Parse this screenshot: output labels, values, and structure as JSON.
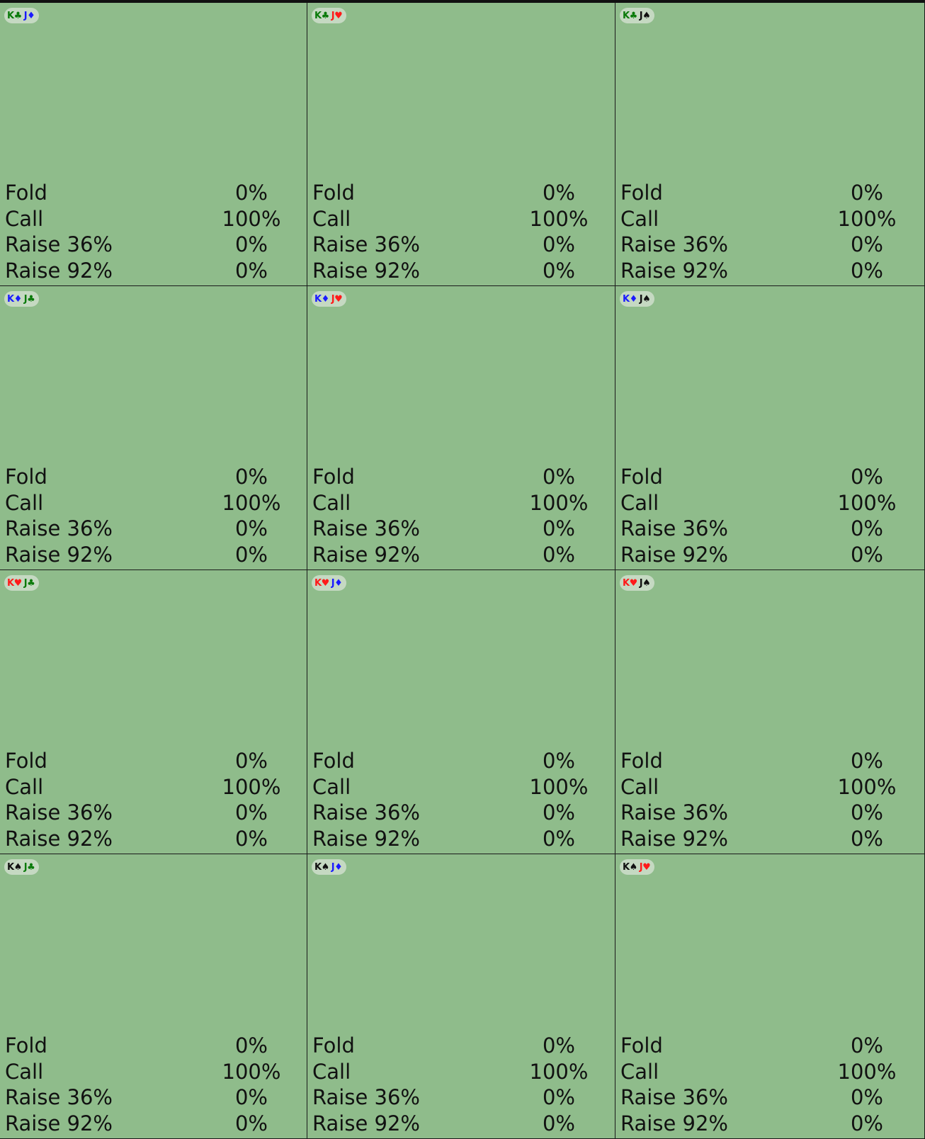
{
  "suit_colors": {
    "clubs": "#0a7a0a",
    "diamonds": "#1a1aff",
    "hearts": "#ff1a1a",
    "spades": "#111111"
  },
  "cells": [
    {
      "hand": [
        {
          "rank": "K",
          "suit": "♣",
          "suit_name": "clubs"
        },
        {
          "rank": "J",
          "suit": "♦",
          "suit_name": "diamonds"
        }
      ],
      "actions": [
        {
          "label": "Fold",
          "value": "0%"
        },
        {
          "label": "Call",
          "value": "100%"
        },
        {
          "label": "Raise 36%",
          "value": "0%"
        },
        {
          "label": "Raise 92%",
          "value": "0%"
        }
      ]
    },
    {
      "hand": [
        {
          "rank": "K",
          "suit": "♣",
          "suit_name": "clubs"
        },
        {
          "rank": "J",
          "suit": "♥",
          "suit_name": "hearts"
        }
      ],
      "actions": [
        {
          "label": "Fold",
          "value": "0%"
        },
        {
          "label": "Call",
          "value": "100%"
        },
        {
          "label": "Raise 36%",
          "value": "0%"
        },
        {
          "label": "Raise 92%",
          "value": "0%"
        }
      ]
    },
    {
      "hand": [
        {
          "rank": "K",
          "suit": "♣",
          "suit_name": "clubs"
        },
        {
          "rank": "J",
          "suit": "♠",
          "suit_name": "spades"
        }
      ],
      "actions": [
        {
          "label": "Fold",
          "value": "0%"
        },
        {
          "label": "Call",
          "value": "100%"
        },
        {
          "label": "Raise 36%",
          "value": "0%"
        },
        {
          "label": "Raise 92%",
          "value": "0%"
        }
      ]
    },
    {
      "hand": [
        {
          "rank": "K",
          "suit": "♦",
          "suit_name": "diamonds"
        },
        {
          "rank": "J",
          "suit": "♣",
          "suit_name": "clubs"
        }
      ],
      "actions": [
        {
          "label": "Fold",
          "value": "0%"
        },
        {
          "label": "Call",
          "value": "100%"
        },
        {
          "label": "Raise 36%",
          "value": "0%"
        },
        {
          "label": "Raise 92%",
          "value": "0%"
        }
      ]
    },
    {
      "hand": [
        {
          "rank": "K",
          "suit": "♦",
          "suit_name": "diamonds"
        },
        {
          "rank": "J",
          "suit": "♥",
          "suit_name": "hearts"
        }
      ],
      "actions": [
        {
          "label": "Fold",
          "value": "0%"
        },
        {
          "label": "Call",
          "value": "100%"
        },
        {
          "label": "Raise 36%",
          "value": "0%"
        },
        {
          "label": "Raise 92%",
          "value": "0%"
        }
      ]
    },
    {
      "hand": [
        {
          "rank": "K",
          "suit": "♦",
          "suit_name": "diamonds"
        },
        {
          "rank": "J",
          "suit": "♠",
          "suit_name": "spades"
        }
      ],
      "actions": [
        {
          "label": "Fold",
          "value": "0%"
        },
        {
          "label": "Call",
          "value": "100%"
        },
        {
          "label": "Raise 36%",
          "value": "0%"
        },
        {
          "label": "Raise 92%",
          "value": "0%"
        }
      ]
    },
    {
      "hand": [
        {
          "rank": "K",
          "suit": "♥",
          "suit_name": "hearts"
        },
        {
          "rank": "J",
          "suit": "♣",
          "suit_name": "clubs"
        }
      ],
      "actions": [
        {
          "label": "Fold",
          "value": "0%"
        },
        {
          "label": "Call",
          "value": "100%"
        },
        {
          "label": "Raise 36%",
          "value": "0%"
        },
        {
          "label": "Raise 92%",
          "value": "0%"
        }
      ]
    },
    {
      "hand": [
        {
          "rank": "K",
          "suit": "♥",
          "suit_name": "hearts"
        },
        {
          "rank": "J",
          "suit": "♦",
          "suit_name": "diamonds"
        }
      ],
      "actions": [
        {
          "label": "Fold",
          "value": "0%"
        },
        {
          "label": "Call",
          "value": "100%"
        },
        {
          "label": "Raise 36%",
          "value": "0%"
        },
        {
          "label": "Raise 92%",
          "value": "0%"
        }
      ]
    },
    {
      "hand": [
        {
          "rank": "K",
          "suit": "♥",
          "suit_name": "hearts"
        },
        {
          "rank": "J",
          "suit": "♠",
          "suit_name": "spades"
        }
      ],
      "actions": [
        {
          "label": "Fold",
          "value": "0%"
        },
        {
          "label": "Call",
          "value": "100%"
        },
        {
          "label": "Raise 36%",
          "value": "0%"
        },
        {
          "label": "Raise 92%",
          "value": "0%"
        }
      ]
    },
    {
      "hand": [
        {
          "rank": "K",
          "suit": "♠",
          "suit_name": "spades"
        },
        {
          "rank": "J",
          "suit": "♣",
          "suit_name": "clubs"
        }
      ],
      "actions": [
        {
          "label": "Fold",
          "value": "0%"
        },
        {
          "label": "Call",
          "value": "100%"
        },
        {
          "label": "Raise 36%",
          "value": "0%"
        },
        {
          "label": "Raise 92%",
          "value": "0%"
        }
      ]
    },
    {
      "hand": [
        {
          "rank": "K",
          "suit": "♠",
          "suit_name": "spades"
        },
        {
          "rank": "J",
          "suit": "♦",
          "suit_name": "diamonds"
        }
      ],
      "actions": [
        {
          "label": "Fold",
          "value": "0%"
        },
        {
          "label": "Call",
          "value": "100%"
        },
        {
          "label": "Raise 36%",
          "value": "0%"
        },
        {
          "label": "Raise 92%",
          "value": "0%"
        }
      ]
    },
    {
      "hand": [
        {
          "rank": "K",
          "suit": "♠",
          "suit_name": "spades"
        },
        {
          "rank": "J",
          "suit": "♥",
          "suit_name": "hearts"
        }
      ],
      "actions": [
        {
          "label": "Fold",
          "value": "0%"
        },
        {
          "label": "Call",
          "value": "100%"
        },
        {
          "label": "Raise 36%",
          "value": "0%"
        },
        {
          "label": "Raise 92%",
          "value": "0%"
        }
      ]
    }
  ]
}
